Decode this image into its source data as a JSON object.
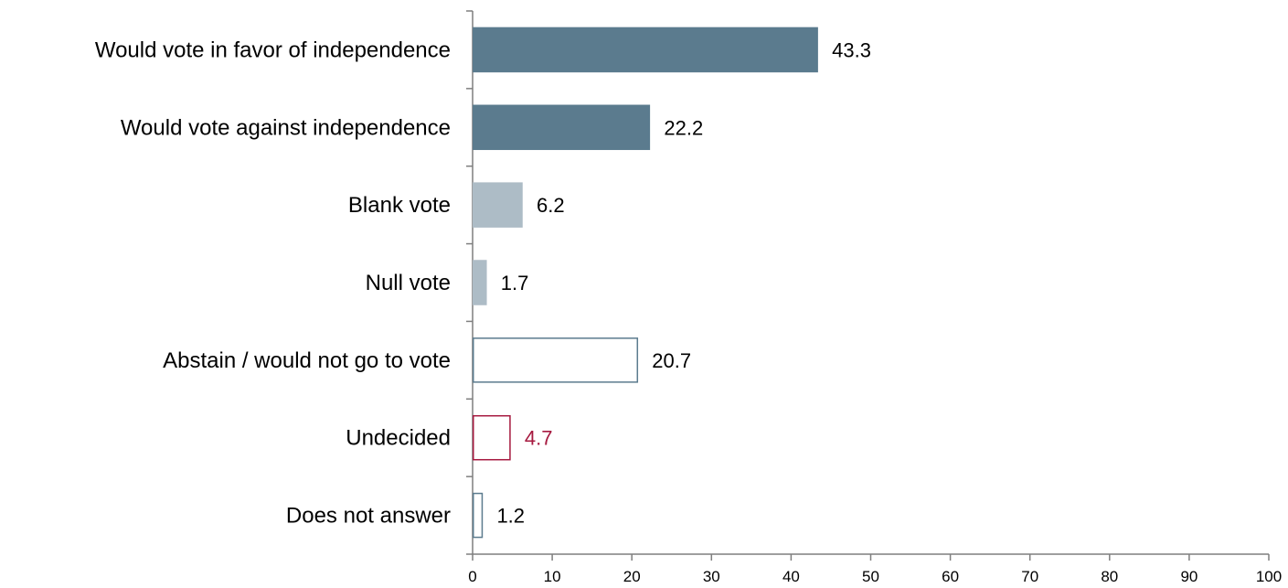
{
  "chart_data": {
    "type": "bar",
    "orientation": "horizontal",
    "categories": [
      "Would vote in favor of independence",
      "Would vote against independence",
      "Blank vote",
      "Null vote",
      "Abstain / would not go to vote",
      "Undecided",
      "Does not answer"
    ],
    "values": [
      43.3,
      22.2,
      6.2,
      1.7,
      20.7,
      4.7,
      1.2
    ],
    "value_labels": [
      "43.3",
      "22.2",
      "6.2",
      "1.7",
      "20.7",
      "4.7",
      "1.2"
    ],
    "bar_styles": [
      {
        "fill": "#5b7b8e",
        "stroke": "#5b7b8e",
        "label_color": "#000000"
      },
      {
        "fill": "#5b7b8e",
        "stroke": "#5b7b8e",
        "label_color": "#000000"
      },
      {
        "fill": "#adbcc6",
        "stroke": "#adbcc6",
        "label_color": "#000000"
      },
      {
        "fill": "#adbcc6",
        "stroke": "#adbcc6",
        "label_color": "#000000"
      },
      {
        "fill": "#ffffff",
        "stroke": "#5b7b8e",
        "label_color": "#000000"
      },
      {
        "fill": "#ffffff",
        "stroke": "#a6193f",
        "label_color": "#a6193f"
      },
      {
        "fill": "#ffffff",
        "stroke": "#5b7b8e",
        "label_color": "#000000"
      }
    ],
    "x_ticks": [
      "0",
      "10",
      "20",
      "30",
      "40",
      "50",
      "60",
      "70",
      "80",
      "90",
      "100"
    ],
    "xlim": [
      0,
      100
    ],
    "title": "",
    "xlabel": "",
    "ylabel": "",
    "grid": false,
    "legend": "none"
  }
}
